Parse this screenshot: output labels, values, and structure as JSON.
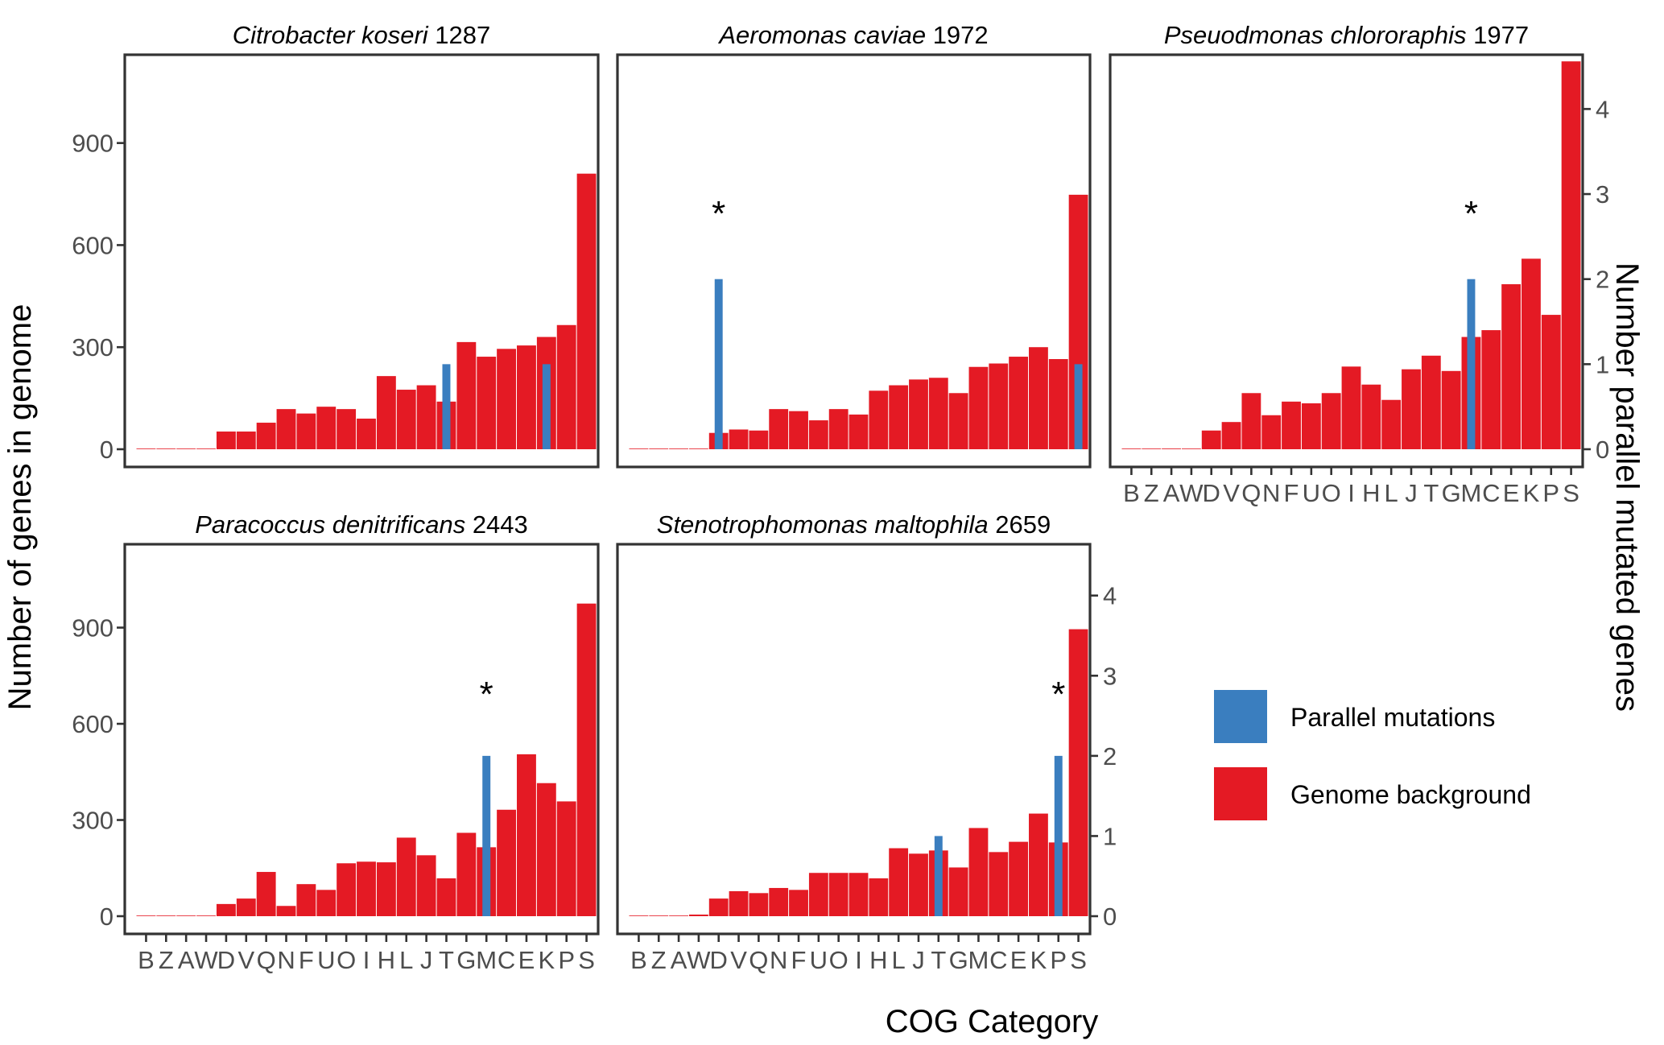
{
  "chart_data": {
    "type": "bar",
    "xlabel": "COG Category",
    "ylabel_left": "Number of genes in genome",
    "ylabel_right": "Number  parallel mutated genes",
    "categories": [
      "B",
      "Z",
      "A",
      "W",
      "D",
      "V",
      "Q",
      "N",
      "F",
      "U",
      "O",
      "I",
      "H",
      "L",
      "J",
      "T",
      "G",
      "M",
      "C",
      "E",
      "K",
      "P",
      "S"
    ],
    "x_tick_labels": [
      "B",
      "Z",
      "A",
      "W",
      "D",
      "V",
      "Q",
      "N",
      "F",
      "U",
      "O",
      "I",
      "H",
      "L",
      "J",
      "T",
      "G",
      "M",
      "C",
      "E",
      "K",
      "P",
      "S"
    ],
    "y_left_ticks": [
      "0",
      "300",
      "600",
      "900"
    ],
    "y_right_ticks": [
      "0",
      "1",
      "2",
      "3",
      "4"
    ],
    "ylim_left": [
      0,
      1150
    ],
    "ylim_right": [
      0,
      4.6
    ],
    "significance_marker": "*",
    "legend": [
      {
        "name": "Parallel mutations",
        "color": "#3a7ebf"
      },
      {
        "name": "Genome background",
        "color": "#e41a24"
      }
    ],
    "panels": [
      {
        "title_species": "Citrobacter koseri",
        "title_number": "1287",
        "show_left_axis": true,
        "show_right_axis": false,
        "show_x_axis": false,
        "genome": [
          0,
          0,
          0,
          0,
          52,
          52,
          78,
          118,
          105,
          125,
          118,
          90,
          215,
          175,
          188,
          140,
          315,
          272,
          295,
          305,
          330,
          365,
          810
        ],
        "parallel": [
          0,
          0,
          0,
          0,
          0,
          0,
          0,
          0,
          0,
          0,
          0,
          0,
          0,
          0,
          0,
          1,
          0,
          0,
          0,
          0,
          1,
          0,
          0
        ],
        "star": null
      },
      {
        "title_species": "Aeromonas caviae",
        "title_number": "1972",
        "show_left_axis": false,
        "show_right_axis": false,
        "show_x_axis": false,
        "genome": [
          0,
          0,
          0,
          0,
          48,
          58,
          55,
          118,
          112,
          85,
          118,
          102,
          172,
          188,
          205,
          210,
          165,
          242,
          252,
          272,
          300,
          265,
          748
        ],
        "parallel": [
          0,
          0,
          0,
          0,
          2,
          0,
          0,
          0,
          0,
          0,
          0,
          0,
          0,
          0,
          0,
          0,
          0,
          0,
          0,
          0,
          0,
          0,
          1
        ],
        "star": "D"
      },
      {
        "title_species": "Pseuodmonas chlororaphis",
        "title_number": "1977",
        "show_left_axis": false,
        "show_right_axis": true,
        "show_x_axis": true,
        "genome": [
          0,
          0,
          2,
          0,
          55,
          80,
          165,
          100,
          140,
          135,
          165,
          243,
          190,
          145,
          235,
          275,
          230,
          330,
          350,
          485,
          560,
          395,
          1140
        ],
        "parallel": [
          0,
          0,
          0,
          0,
          0,
          0,
          0,
          0,
          0,
          0,
          0,
          0,
          0,
          0,
          0,
          0,
          0,
          2,
          0,
          0,
          0,
          0,
          0
        ],
        "star": "M"
      },
      {
        "title_species": "Paracoccus denitrificans",
        "title_number": "2443",
        "show_left_axis": true,
        "show_right_axis": false,
        "show_x_axis": true,
        "genome": [
          0,
          2,
          0,
          0,
          38,
          55,
          138,
          32,
          100,
          82,
          165,
          170,
          168,
          245,
          190,
          118,
          260,
          215,
          332,
          505,
          415,
          358,
          975
        ],
        "parallel": [
          0,
          0,
          0,
          0,
          0,
          0,
          0,
          0,
          0,
          0,
          0,
          0,
          0,
          0,
          0,
          0,
          0,
          2,
          0,
          0,
          0,
          0,
          0
        ],
        "star": "M"
      },
      {
        "title_species": "Stenotrophomonas maltophila",
        "title_number": "2659",
        "show_left_axis": false,
        "show_right_axis": true,
        "show_x_axis": true,
        "genome": [
          2,
          2,
          2,
          5,
          55,
          78,
          72,
          88,
          82,
          135,
          135,
          135,
          118,
          212,
          195,
          205,
          152,
          275,
          200,
          232,
          320,
          230,
          895
        ],
        "parallel": [
          0,
          0,
          0,
          0,
          0,
          0,
          0,
          0,
          0,
          0,
          0,
          0,
          0,
          0,
          0,
          1,
          0,
          0,
          0,
          0,
          0,
          2,
          0
        ],
        "star": "P"
      }
    ]
  }
}
